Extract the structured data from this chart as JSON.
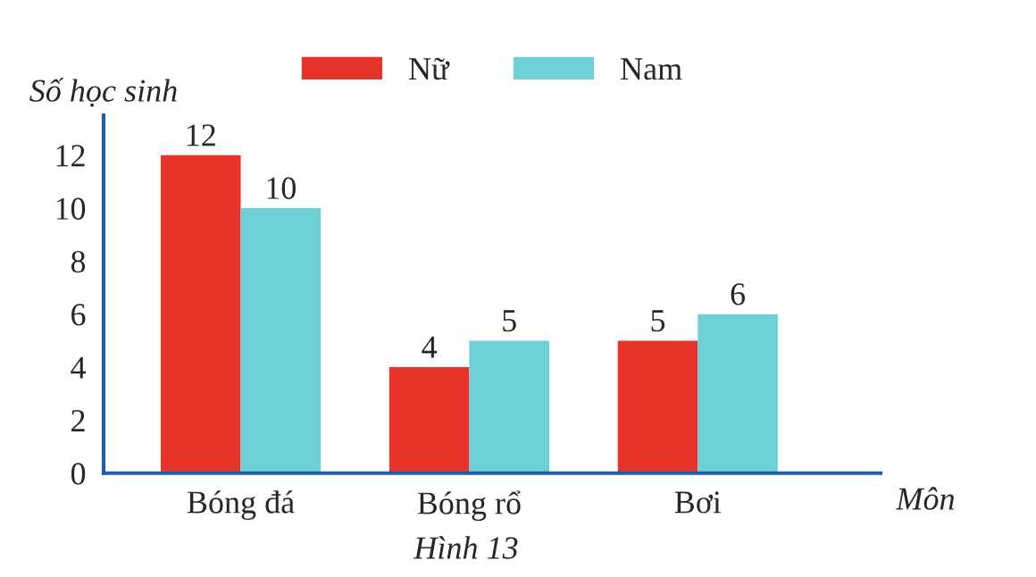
{
  "chart_data": {
    "type": "bar",
    "ylabel": "Số học sinh",
    "xlabel": "Môn",
    "annotations": [
      "Hình 13"
    ],
    "categories": [
      "Bóng đá",
      "Bóng rổ",
      "Bơi"
    ],
    "series": [
      {
        "name": "Nữ",
        "color": "#e8332a",
        "values": [
          12,
          4,
          5
        ]
      },
      {
        "name": "Nam",
        "color": "#6dd0d6",
        "values": [
          10,
          5,
          6
        ]
      }
    ],
    "ylim": [
      0,
      13.5
    ],
    "yticks": [
      0,
      2,
      4,
      6,
      8,
      10,
      12
    ],
    "data_labels": true,
    "legend": "top",
    "grid": false
  }
}
